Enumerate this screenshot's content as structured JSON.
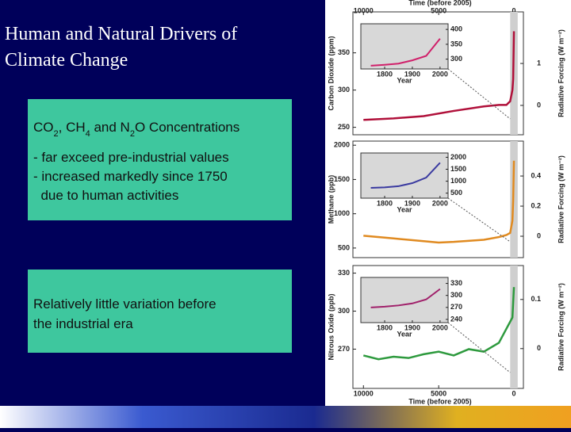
{
  "title": [
    "Human and Natural Drivers of",
    "Climate Change"
  ],
  "box1": {
    "heading": [
      "CO",
      "2",
      ", CH",
      "4",
      " and N",
      "2",
      "O Concentrations"
    ],
    "lines": [
      "- far exceed pre-industrial values",
      "- increased markedly since 1750",
      "  due to human activities"
    ]
  },
  "box2": {
    "lines": [
      "Relatively little variation before",
      "the industrial era"
    ]
  },
  "figure": {
    "time_label": "Time (before 2005)",
    "xlim": [
      10700,
      -630
    ],
    "xticks": [
      10000,
      5000,
      0
    ],
    "inset_xlim": [
      1714,
      2029
    ],
    "inset_xticks": [
      1800,
      1900,
      2000
    ],
    "inset_xlabel": "Year",
    "panels": [
      {
        "y_label": "Carbon Dioxide (ppm)",
        "y2_label": "Radiative Forcing (W m⁻²)",
        "ylim": [
          240,
          405
        ],
        "yticks": [
          250,
          300,
          350
        ],
        "y2lim": [
          -0.7,
          2.23
        ],
        "y2ticks": [
          0,
          1
        ],
        "color": "#b0103a",
        "x": [
          10000,
          8000,
          6000,
          4000,
          2000,
          1000,
          500,
          250,
          100,
          50,
          0
        ],
        "values": [
          260,
          262,
          265,
          272,
          278,
          280,
          280,
          285,
          300,
          315,
          379
        ],
        "inset": {
          "ylim": [
            267,
            419
          ],
          "yticks": [
            300,
            350,
            400
          ],
          "color": "#d0206a",
          "x": [
            1750,
            1800,
            1850,
            1900,
            1950,
            2000
          ],
          "values": [
            278,
            281,
            285,
            296,
            311,
            369
          ]
        }
      },
      {
        "y_label": "Methane (ppb)",
        "y2_label": "Radiative Forcing (W m⁻²)",
        "ylim": [
          360,
          2060
        ],
        "yticks": [
          500,
          1000,
          1500,
          2000
        ],
        "y2lim": [
          -0.142,
          0.632
        ],
        "y2ticks": [
          0,
          0.2,
          0.4
        ],
        "color": "#e08a20",
        "x": [
          10000,
          8000,
          6000,
          5000,
          4000,
          2000,
          1000,
          500,
          250,
          100,
          50,
          0
        ],
        "values": [
          680,
          640,
          600,
          580,
          590,
          620,
          660,
          690,
          720,
          900,
          1200,
          1774
        ],
        "inset": {
          "ylim": [
            290,
            2180
          ],
          "yticks": [
            500,
            1000,
            1500,
            2000
          ],
          "color": "#3a3aa0",
          "x": [
            1750,
            1800,
            1850,
            1900,
            1950,
            2000
          ],
          "values": [
            720,
            740,
            790,
            920,
            1150,
            1770
          ]
        }
      },
      {
        "y_label": "Nitrous Oxide (ppb)",
        "y2_label": "Radiative Forcing (W m⁻²)",
        "ylim": [
          239,
          336
        ],
        "yticks": [
          270,
          300,
          330
        ],
        "y2lim": [
          -0.081,
          0.169
        ],
        "y2ticks": [
          0,
          0.1
        ],
        "color": "#2e9a3e",
        "x": [
          10000,
          9000,
          8000,
          7000,
          6000,
          5000,
          4000,
          3000,
          2000,
          1000,
          100,
          0
        ],
        "values": [
          265,
          262,
          264,
          263,
          266,
          268,
          265,
          270,
          268,
          275,
          295,
          319
        ],
        "inset": {
          "ylim": [
            232,
            345
          ],
          "yticks": [
            240,
            270,
            300,
            330
          ],
          "color": "#a0206a",
          "x": [
            1750,
            1800,
            1850,
            1900,
            1950,
            2000
          ],
          "values": [
            270,
            272,
            275,
            280,
            290,
            316
          ]
        }
      }
    ]
  }
}
